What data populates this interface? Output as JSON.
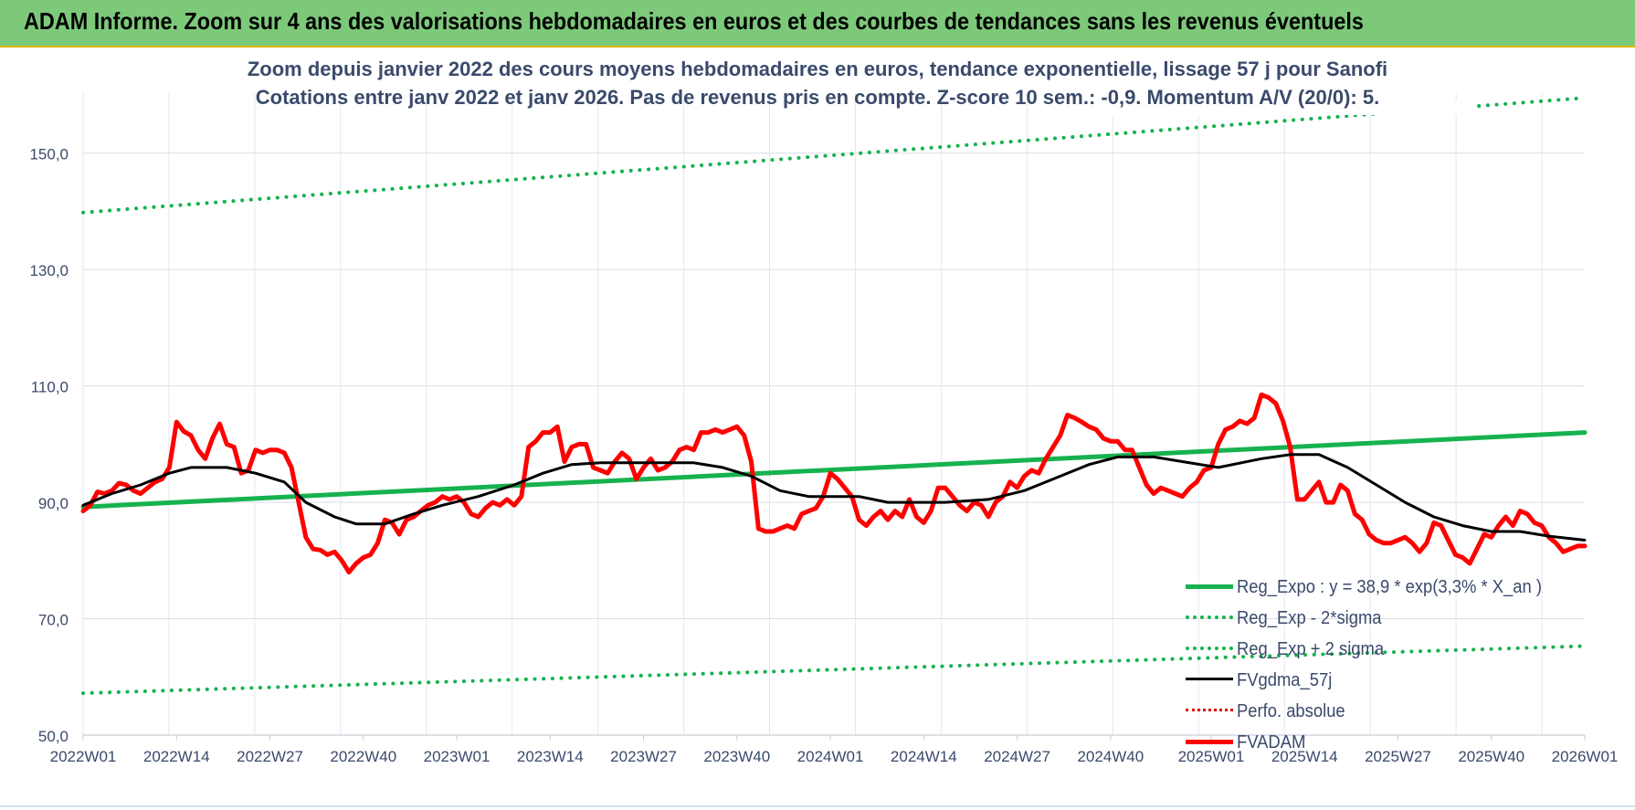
{
  "header": {
    "title": "ADAM Informe. Zoom sur 4 ans des valorisations hebdomadaires en euros et des courbes de tendances sans les revenus éventuels"
  },
  "colors": {
    "header_bg": "#7dc97a",
    "reg_expo": "#16b24e",
    "sigma": "#16b24e",
    "fvgdma": "#000000",
    "perfo": "#e00000",
    "fvadam": "#ff0000",
    "text": "#3a4a6b"
  },
  "chart_data": {
    "type": "line",
    "title": "Zoom depuis janvier 2022 des cours moyens hebdomadaires en euros, tendance exponentielle, lissage 57 j pour Sanofi",
    "subtitle": "Cotations entre janv 2022 et janv 2026. Pas de revenus pris en compte. Z-score 10 sem.: -0,9. Momentum A/V (20/0): 5.",
    "ylim": [
      50,
      160
    ],
    "yticks": [
      50,
      70,
      90,
      110,
      130,
      150
    ],
    "ytick_labels": [
      "50,0",
      "70,0",
      "90,0",
      "110,0",
      "130,0",
      "150,0"
    ],
    "x_range": [
      0,
      209
    ],
    "xticks": [
      {
        "x": 0,
        "label": "2022W01"
      },
      {
        "x": 13,
        "label": "2022W14"
      },
      {
        "x": 26,
        "label": "2022W27"
      },
      {
        "x": 39,
        "label": "2022W40"
      },
      {
        "x": 52,
        "label": "2023W01"
      },
      {
        "x": 65,
        "label": "2023W14"
      },
      {
        "x": 78,
        "label": "2023W27"
      },
      {
        "x": 91,
        "label": "2023W40"
      },
      {
        "x": 104,
        "label": "2024W01"
      },
      {
        "x": 117,
        "label": "2024W14"
      },
      {
        "x": 130,
        "label": "2024W27"
      },
      {
        "x": 143,
        "label": "2024W40"
      },
      {
        "x": 157,
        "label": "2025W01"
      },
      {
        "x": 170,
        "label": "2025W14"
      },
      {
        "x": 183,
        "label": "2025W27"
      },
      {
        "x": 196,
        "label": "2025W40"
      },
      {
        "x": 209,
        "label": "2026W01"
      }
    ],
    "grid": true,
    "legend_position": "bottom-right",
    "series": [
      {
        "name": "Reg_Expo : y = 38,9 * exp(3,3% * X_an )",
        "style": "solid",
        "width": 5,
        "color": "#16b24e",
        "points": [
          [
            0,
            89.2
          ],
          [
            209,
            102.0
          ]
        ]
      },
      {
        "name": "Reg_Exp - 2*sigma",
        "style": "dotted",
        "width": 4,
        "color": "#16b24e",
        "points": [
          [
            0,
            57.2
          ],
          [
            209,
            65.3
          ]
        ]
      },
      {
        "name": "Reg_Exp + 2 sigma",
        "style": "dotted",
        "width": 4,
        "color": "#16b24e",
        "points": [
          [
            0,
            139.8
          ],
          [
            209,
            159.5
          ]
        ]
      },
      {
        "name": "FVgdma_57j",
        "style": "solid",
        "width": 3,
        "color": "#000000",
        "points": [
          [
            0,
            89.5
          ],
          [
            4,
            91.5
          ],
          [
            8,
            93
          ],
          [
            12,
            95
          ],
          [
            15,
            96
          ],
          [
            20,
            96
          ],
          [
            24,
            95
          ],
          [
            28,
            93.5
          ],
          [
            31,
            90
          ],
          [
            35,
            87.5
          ],
          [
            38,
            86.3
          ],
          [
            42,
            86.3
          ],
          [
            46,
            88
          ],
          [
            50,
            89.5
          ],
          [
            55,
            91
          ],
          [
            60,
            93
          ],
          [
            64,
            95
          ],
          [
            68,
            96.5
          ],
          [
            72,
            96.8
          ],
          [
            78,
            96.8
          ],
          [
            85,
            96.8
          ],
          [
            89,
            96
          ],
          [
            93,
            94.5
          ],
          [
            97,
            92
          ],
          [
            101,
            91
          ],
          [
            108,
            91
          ],
          [
            112,
            90
          ],
          [
            120,
            90
          ],
          [
            126,
            90.5
          ],
          [
            131,
            92
          ],
          [
            135,
            94
          ],
          [
            140,
            96.5
          ],
          [
            144,
            97.8
          ],
          [
            149,
            97.8
          ],
          [
            153,
            97
          ],
          [
            158,
            96
          ],
          [
            164,
            97.5
          ],
          [
            168,
            98.2
          ],
          [
            172,
            98.2
          ],
          [
            176,
            96
          ],
          [
            180,
            93
          ],
          [
            184,
            90
          ],
          [
            188,
            87.5
          ],
          [
            192,
            86
          ],
          [
            196,
            85
          ],
          [
            200,
            85
          ],
          [
            204,
            84.2
          ],
          [
            209,
            83.5
          ]
        ]
      },
      {
        "name": "Perfo. absolue",
        "style": "dotted",
        "width": 3,
        "color": "#e00000",
        "points": []
      },
      {
        "name": "FVADAM",
        "style": "solid",
        "width": 5,
        "color": "#ff0000",
        "points": [
          [
            0,
            88.5
          ],
          [
            1,
            89.5
          ],
          [
            2,
            91.8
          ],
          [
            3,
            91.5
          ],
          [
            4,
            92
          ],
          [
            5,
            93.3
          ],
          [
            6,
            93
          ],
          [
            7,
            92
          ],
          [
            8,
            91.5
          ],
          [
            9,
            92.5
          ],
          [
            10,
            93.5
          ],
          [
            11,
            94
          ],
          [
            12,
            96
          ],
          [
            13,
            103.8
          ],
          [
            14,
            102.2
          ],
          [
            15,
            101.5
          ],
          [
            16,
            99
          ],
          [
            17,
            97.5
          ],
          [
            18,
            101
          ],
          [
            19,
            103.5
          ],
          [
            20,
            100
          ],
          [
            21,
            99.5
          ],
          [
            22,
            95
          ],
          [
            23,
            95.5
          ],
          [
            24,
            99
          ],
          [
            25,
            98.5
          ],
          [
            26,
            99
          ],
          [
            27,
            99
          ],
          [
            28,
            98.5
          ],
          [
            29,
            96
          ],
          [
            30,
            90
          ],
          [
            31,
            84
          ],
          [
            32,
            82
          ],
          [
            33,
            81.8
          ],
          [
            34,
            81
          ],
          [
            35,
            81.5
          ],
          [
            36,
            80
          ],
          [
            37,
            78
          ],
          [
            38,
            79.5
          ],
          [
            39,
            80.5
          ],
          [
            40,
            81
          ],
          [
            41,
            83
          ],
          [
            42,
            87
          ],
          [
            43,
            86.5
          ],
          [
            44,
            84.5
          ],
          [
            45,
            87
          ],
          [
            46,
            87.5
          ],
          [
            47,
            88.5
          ],
          [
            48,
            89.5
          ],
          [
            49,
            90
          ],
          [
            50,
            91
          ],
          [
            51,
            90.5
          ],
          [
            52,
            91
          ],
          [
            53,
            90
          ],
          [
            54,
            88
          ],
          [
            55,
            87.5
          ],
          [
            56,
            89
          ],
          [
            57,
            90
          ],
          [
            58,
            89.5
          ],
          [
            59,
            90.5
          ],
          [
            60,
            89.5
          ],
          [
            61,
            91
          ],
          [
            62,
            99.5
          ],
          [
            63,
            100.5
          ],
          [
            64,
            102
          ],
          [
            65,
            102
          ],
          [
            66,
            103
          ],
          [
            67,
            97
          ],
          [
            68,
            99.5
          ],
          [
            69,
            100
          ],
          [
            70,
            100
          ],
          [
            71,
            96
          ],
          [
            72,
            95.5
          ],
          [
            73,
            95
          ],
          [
            74,
            97
          ],
          [
            75,
            98.5
          ],
          [
            76,
            97.5
          ],
          [
            77,
            94
          ],
          [
            78,
            96
          ],
          [
            79,
            97.5
          ],
          [
            80,
            95.5
          ],
          [
            81,
            96
          ],
          [
            82,
            97
          ],
          [
            83,
            99
          ],
          [
            84,
            99.5
          ],
          [
            85,
            99
          ],
          [
            86,
            102
          ],
          [
            87,
            102
          ],
          [
            88,
            102.5
          ],
          [
            89,
            102
          ],
          [
            90,
            102.5
          ],
          [
            91,
            103
          ],
          [
            92,
            101.5
          ],
          [
            93,
            97
          ],
          [
            94,
            85.5
          ],
          [
            95,
            85
          ],
          [
            96,
            85
          ],
          [
            97,
            85.5
          ],
          [
            98,
            86
          ],
          [
            99,
            85.5
          ],
          [
            100,
            88
          ],
          [
            101,
            88.5
          ],
          [
            102,
            89
          ],
          [
            103,
            91
          ],
          [
            104,
            95
          ],
          [
            105,
            94
          ],
          [
            106,
            92.5
          ],
          [
            107,
            91
          ],
          [
            108,
            87
          ],
          [
            109,
            86
          ],
          [
            110,
            87.5
          ],
          [
            111,
            88.5
          ],
          [
            112,
            87
          ],
          [
            113,
            88.5
          ],
          [
            114,
            87.5
          ],
          [
            115,
            90.5
          ],
          [
            116,
            87.5
          ],
          [
            117,
            86.5
          ],
          [
            118,
            88.5
          ],
          [
            119,
            92.5
          ],
          [
            120,
            92.5
          ],
          [
            121,
            91
          ],
          [
            122,
            89.5
          ],
          [
            123,
            88.5
          ],
          [
            124,
            90
          ],
          [
            125,
            89.5
          ],
          [
            126,
            87.5
          ],
          [
            127,
            90
          ],
          [
            128,
            91
          ],
          [
            129,
            93.5
          ],
          [
            130,
            92.5
          ],
          [
            131,
            94.5
          ],
          [
            132,
            95.5
          ],
          [
            133,
            95
          ],
          [
            134,
            97.5
          ],
          [
            135,
            99.5
          ],
          [
            136,
            101.5
          ],
          [
            137,
            105
          ],
          [
            138,
            104.5
          ],
          [
            139,
            103.8
          ],
          [
            140,
            103
          ],
          [
            141,
            102.5
          ],
          [
            142,
            101
          ],
          [
            143,
            100.5
          ],
          [
            144,
            100.5
          ],
          [
            145,
            99
          ],
          [
            146,
            99
          ],
          [
            147,
            96
          ],
          [
            148,
            93
          ],
          [
            149,
            91.5
          ],
          [
            150,
            92.5
          ],
          [
            151,
            92
          ],
          [
            152,
            91.5
          ],
          [
            153,
            91
          ],
          [
            154,
            92.5
          ],
          [
            155,
            93.5
          ],
          [
            156,
            95.5
          ],
          [
            157,
            96
          ],
          [
            158,
            100
          ],
          [
            159,
            102.5
          ],
          [
            160,
            103
          ],
          [
            161,
            104
          ],
          [
            162,
            103.5
          ],
          [
            163,
            104.5
          ],
          [
            164,
            108.5
          ],
          [
            165,
            108
          ],
          [
            166,
            107
          ],
          [
            167,
            104
          ],
          [
            168,
            99.5
          ],
          [
            169,
            90.5
          ],
          [
            170,
            90.5
          ],
          [
            171,
            92
          ],
          [
            172,
            93.5
          ],
          [
            173,
            90
          ],
          [
            174,
            90
          ],
          [
            175,
            93
          ],
          [
            176,
            92
          ],
          [
            177,
            88
          ],
          [
            178,
            87
          ],
          [
            179,
            84.5
          ],
          [
            180,
            83.5
          ],
          [
            181,
            83
          ],
          [
            182,
            83
          ],
          [
            183,
            83.5
          ],
          [
            184,
            84
          ],
          [
            185,
            83
          ],
          [
            186,
            81.5
          ],
          [
            187,
            83
          ],
          [
            188,
            86.5
          ],
          [
            189,
            86
          ],
          [
            190,
            83.5
          ],
          [
            191,
            81
          ],
          [
            192,
            80.5
          ],
          [
            193,
            79.5
          ],
          [
            194,
            82
          ],
          [
            195,
            84.5
          ],
          [
            196,
            84
          ],
          [
            197,
            86
          ],
          [
            198,
            87.5
          ],
          [
            199,
            86
          ],
          [
            200,
            88.5
          ],
          [
            201,
            88
          ],
          [
            202,
            86.5
          ],
          [
            203,
            86
          ],
          [
            204,
            84
          ],
          [
            205,
            83
          ],
          [
            206,
            81.5
          ],
          [
            207,
            82
          ],
          [
            208,
            82.5
          ],
          [
            209,
            82.5
          ]
        ]
      }
    ]
  }
}
